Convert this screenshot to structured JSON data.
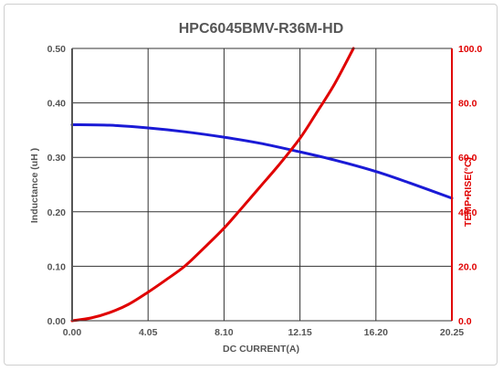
{
  "chart_data": {
    "type": "line",
    "title": "HPC6045BMV-R36M-HD",
    "xlabel": "DC CURRENT(A)",
    "ylabel_left": "Inductance  (uH )",
    "ylabel_right": "TEMP•RISE(°C)",
    "xlim": [
      0,
      20.25
    ],
    "ylim_left": [
      0,
      0.5
    ],
    "ylim_right": [
      0,
      100
    ],
    "x_ticks": [
      "0.00",
      "4.05",
      "8.10",
      "12.15",
      "16.20",
      "20.25"
    ],
    "y_ticks_left": [
      "0.00",
      "0.10",
      "0.20",
      "0.30",
      "0.40",
      "0.50"
    ],
    "y_ticks_right": [
      "0.0",
      "20.0",
      "40.0",
      "60.0",
      "80.0",
      "100.0"
    ],
    "grid": true,
    "colors": {
      "inductance": "#1a1ad6",
      "temp_rise": "#e00000",
      "frame_left": "#555555",
      "frame_right": "#e00000"
    },
    "series": [
      {
        "axis": "left",
        "x": [
          0,
          2.0,
          4.05,
          6.0,
          8.1,
          10.0,
          12.15,
          14.0,
          16.2,
          18.0,
          20.25
        ],
        "values": [
          0.36,
          0.359,
          0.354,
          0.347,
          0.337,
          0.326,
          0.31,
          0.295,
          0.274,
          0.253,
          0.225
        ]
      },
      {
        "axis": "right",
        "x": [
          0,
          1.0,
          2.0,
          3.0,
          4.05,
          5.0,
          6.0,
          7.0,
          8.1,
          9.0,
          10.0,
          11.0,
          12.15,
          13.0,
          14.0,
          15.0
        ],
        "values": [
          0.0,
          1.0,
          3.0,
          6.0,
          10.5,
          15.0,
          20.0,
          26.5,
          34.0,
          41.0,
          49.0,
          57.0,
          67.0,
          76.0,
          87.0,
          100.0
        ]
      }
    ]
  }
}
